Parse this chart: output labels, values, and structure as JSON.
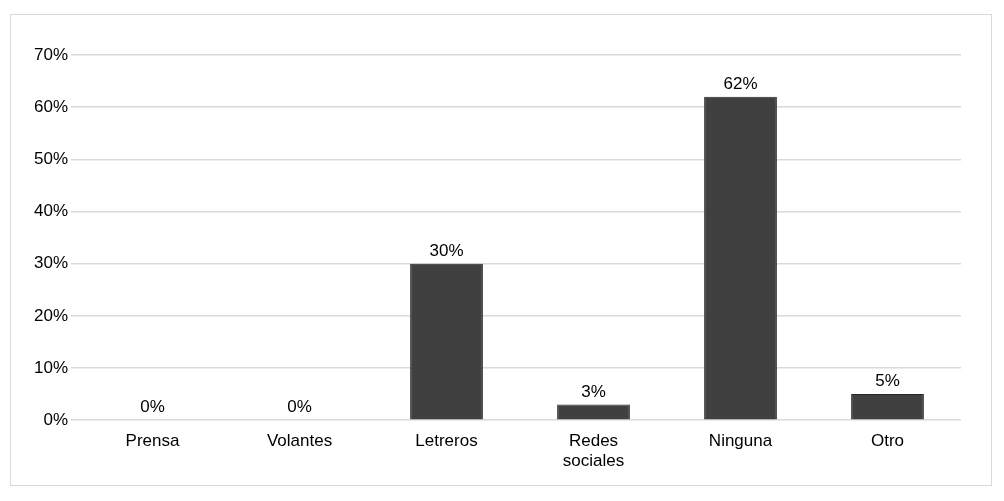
{
  "chart_data": {
    "type": "bar",
    "categories": [
      "Prensa",
      "Volantes",
      "Letreros",
      "Redes sociales",
      "Ninguna",
      "Otro"
    ],
    "values": [
      0,
      0,
      30,
      3,
      62,
      5
    ],
    "value_labels": [
      "0%",
      "0%",
      "30%",
      "3%",
      "62%",
      "5%"
    ],
    "color": "#404040",
    "ylim": [
      0,
      70
    ],
    "yticks": [
      {
        "value": 0,
        "label": "0%"
      },
      {
        "value": 10,
        "label": "10%"
      },
      {
        "value": 20,
        "label": "20%"
      },
      {
        "value": 30,
        "label": "30%"
      },
      {
        "value": 40,
        "label": "40%"
      },
      {
        "value": 50,
        "label": "50%"
      },
      {
        "value": 60,
        "label": "60%"
      },
      {
        "value": 70,
        "label": "70%"
      }
    ],
    "grid": "y"
  }
}
